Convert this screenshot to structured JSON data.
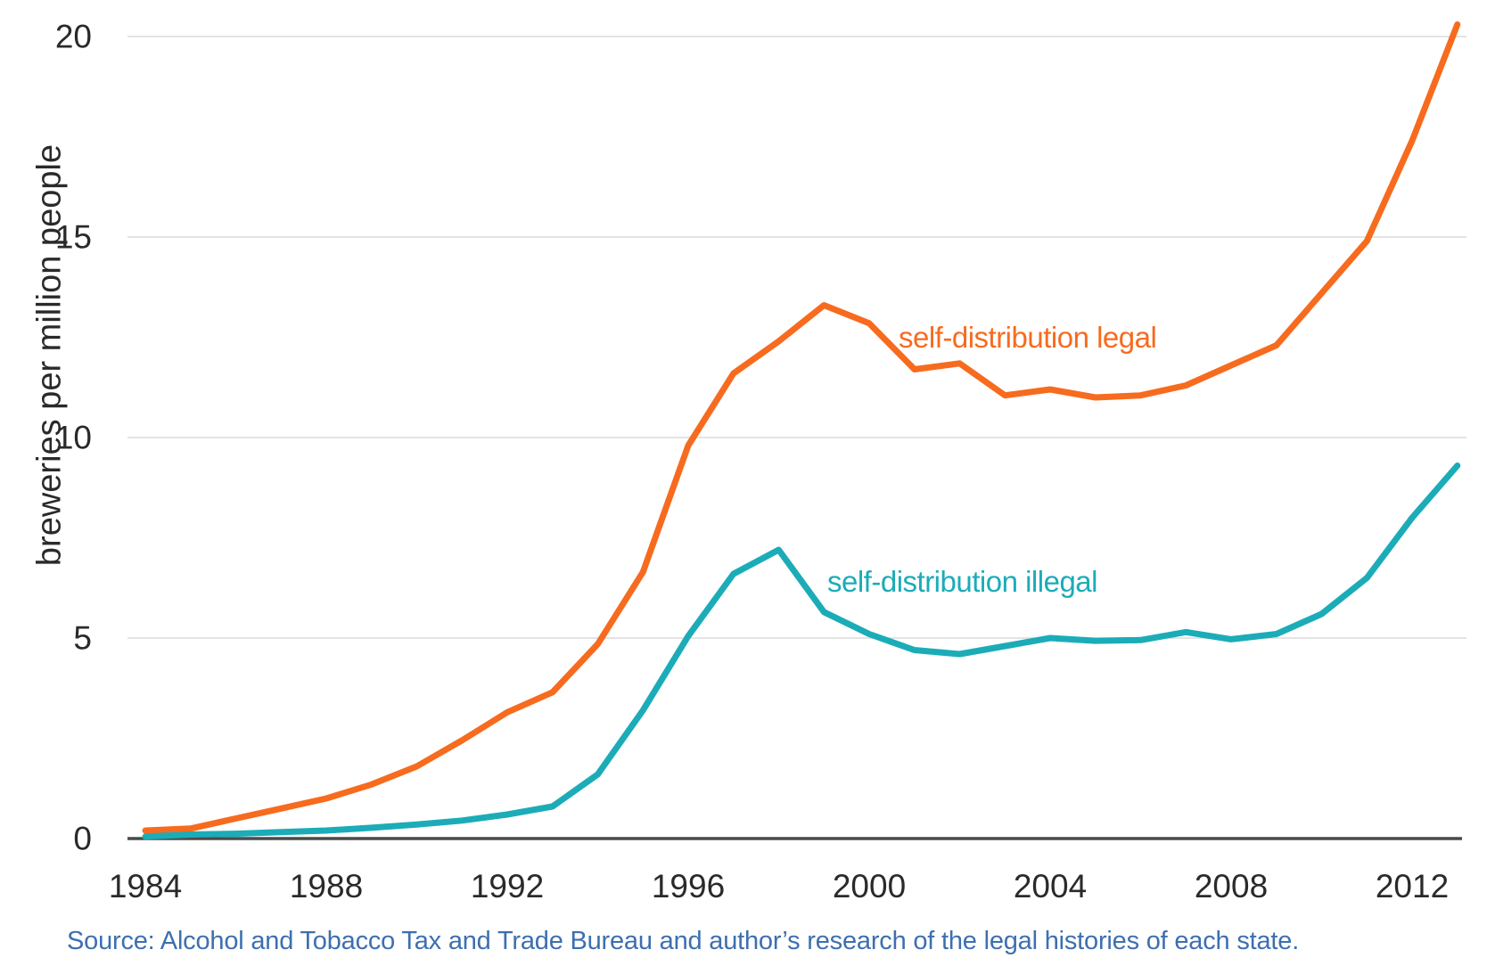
{
  "chart_data": {
    "type": "line",
    "title": "",
    "xlabel": "",
    "ylabel": "breweries per million people",
    "x": [
      1984,
      1985,
      1986,
      1987,
      1988,
      1989,
      1990,
      1991,
      1992,
      1993,
      1994,
      1995,
      1996,
      1997,
      1998,
      1999,
      2000,
      2001,
      2002,
      2003,
      2004,
      2005,
      2006,
      2007,
      2008,
      2009,
      2010,
      2011,
      2012,
      2013
    ],
    "series": [
      {
        "name": "self-distribution legal",
        "color": "#f76b1e",
        "values": [
          0.2,
          0.25,
          0.5,
          0.75,
          1.0,
          1.35,
          1.8,
          2.45,
          3.15,
          3.65,
          4.85,
          6.65,
          9.8,
          11.6,
          12.4,
          13.3,
          12.85,
          11.7,
          11.85,
          11.05,
          11.2,
          11.0,
          11.05,
          11.3,
          11.8,
          12.3,
          13.6,
          14.9,
          17.4,
          20.3
        ]
      },
      {
        "name": "self-distribution illegal",
        "color": "#1bacb8",
        "values": [
          0.05,
          0.1,
          0.12,
          0.16,
          0.2,
          0.27,
          0.35,
          0.45,
          0.6,
          0.8,
          1.6,
          3.2,
          5.05,
          6.6,
          7.2,
          5.65,
          5.1,
          4.7,
          4.6,
          4.8,
          5.0,
          4.93,
          4.95,
          5.15,
          4.97,
          5.1,
          5.6,
          6.5,
          8.0,
          9.3
        ]
      }
    ],
    "x_ticks": [
      1984,
      1988,
      1992,
      1996,
      2000,
      2004,
      2008,
      2012
    ],
    "y_ticks": [
      0,
      5,
      10,
      15,
      20
    ],
    "xlim": [
      1984,
      2013
    ],
    "ylim": [
      0,
      20.5
    ],
    "grid": "horizontal",
    "legend_position": "inline-annotations"
  },
  "ui_colors": {
    "tick_text": "#2a2a2a",
    "gridline": "#dcdcdc",
    "axis_line": "#4a4a4a",
    "source_text": "#3d6fb0",
    "background": "#ffffff"
  },
  "source": "Source: Alcohol and Tobacco Tax and Trade Bureau and author’s research of the legal histories of each state."
}
